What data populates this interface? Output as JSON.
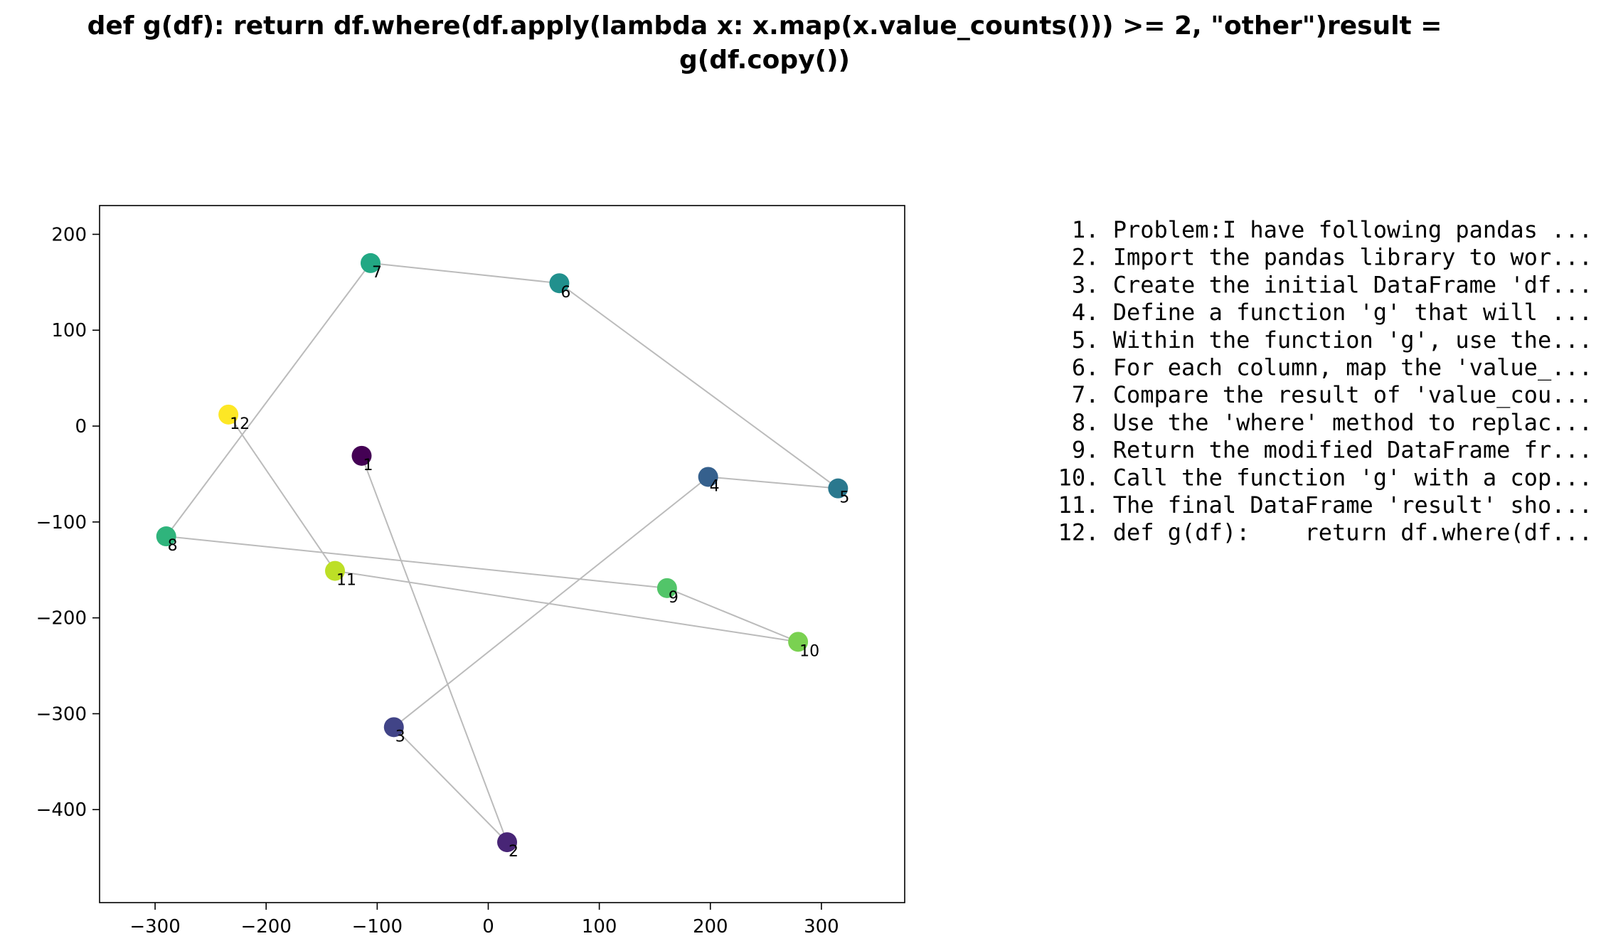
{
  "chart_data": {
    "type": "scatter",
    "title_lines": [
      "def g(df):    return df.where(df.apply(lambda x: x.map(x.value_counts())) >= 2, \"other\")result =",
      "g(df.copy())"
    ],
    "xlabel": "",
    "ylabel": "",
    "xlim": [
      -350,
      375
    ],
    "ylim": [
      -497,
      230
    ],
    "xticks": [
      -300,
      -200,
      -100,
      0,
      100,
      200,
      300
    ],
    "xtick_labels": [
      "−300",
      "−200",
      "−100",
      "0",
      "100",
      "200",
      "300"
    ],
    "yticks": [
      200,
      100,
      0,
      -100,
      -200,
      -300,
      -400
    ],
    "ytick_labels": [
      "200",
      "100",
      "0",
      "−100",
      "−200",
      "−300",
      "−400"
    ],
    "grid": false,
    "connect_points_in_order": true,
    "line_color": "#bbbbbb",
    "points": [
      {
        "label": "1",
        "x": -114,
        "y": -31,
        "color": "#440154"
      },
      {
        "label": "2",
        "x": 17,
        "y": -434,
        "color": "#482576"
      },
      {
        "label": "3",
        "x": -85,
        "y": -314,
        "color": "#414487"
      },
      {
        "label": "4",
        "x": 198,
        "y": -53,
        "color": "#35608d"
      },
      {
        "label": "5",
        "x": 315,
        "y": -65,
        "color": "#2a788e"
      },
      {
        "label": "6",
        "x": 64,
        "y": 149,
        "color": "#21908d"
      },
      {
        "label": "7",
        "x": -106,
        "y": 170,
        "color": "#22a884"
      },
      {
        "label": "8",
        "x": -290,
        "y": -115,
        "color": "#2fb47c"
      },
      {
        "label": "9",
        "x": 161,
        "y": -169,
        "color": "#52c569"
      },
      {
        "label": "10",
        "x": 279,
        "y": -225,
        "color": "#7ad151"
      },
      {
        "label": "11",
        "x": -138,
        "y": -151,
        "color": "#bddf26"
      },
      {
        "label": "12",
        "x": -234,
        "y": 12,
        "color": "#fde725"
      }
    ],
    "legend_placement": "right",
    "legend": [
      "1. Problem:I have following pandas ...",
      "2. Import the pandas library to wor...",
      "3. Create the initial DataFrame 'df...",
      "4. Define a function 'g' that will ...",
      "5. Within the function 'g', use the...",
      "6. For each column, map the 'value_...",
      "7. Compare the result of 'value_cou...",
      "8. Use the 'where' method to replac...",
      "9. Return the modified DataFrame fr...",
      "10. Call the function 'g' with a cop...",
      "11. The final DataFrame 'result' sho...",
      "12. def g(df):    return df.where(df..."
    ]
  }
}
